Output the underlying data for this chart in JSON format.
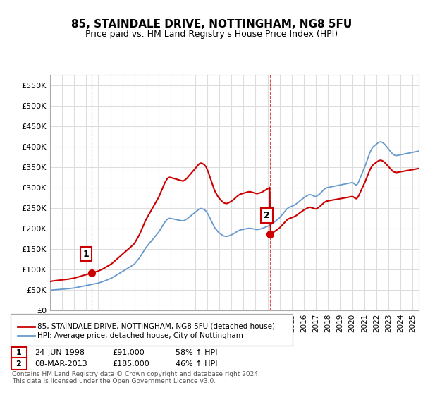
{
  "title": "85, STAINDALE DRIVE, NOTTINGHAM, NG8 5FU",
  "subtitle": "Price paid vs. HM Land Registry's House Price Index (HPI)",
  "ylim": [
    0,
    575000
  ],
  "yticks": [
    0,
    50000,
    100000,
    150000,
    200000,
    250000,
    300000,
    350000,
    400000,
    450000,
    500000,
    550000
  ],
  "ytick_labels": [
    "£0",
    "£50K",
    "£100K",
    "£150K",
    "£200K",
    "£250K",
    "£300K",
    "£350K",
    "£400K",
    "£450K",
    "£500K",
    "£550K"
  ],
  "xtick_years": [
    1995,
    1996,
    1997,
    1998,
    1999,
    2000,
    2001,
    2002,
    2003,
    2004,
    2005,
    2006,
    2007,
    2008,
    2009,
    2010,
    2011,
    2012,
    2013,
    2014,
    2015,
    2016,
    2017,
    2018,
    2019,
    2020,
    2021,
    2022,
    2023,
    2024,
    2025
  ],
  "sale1_x": 1998.48,
  "sale1_y": 91000,
  "sale2_x": 2013.18,
  "sale2_y": 185000,
  "line1_color": "#cc0000",
  "line2_color": "#6699cc",
  "marker_color": "#cc0000",
  "annotation1_label": "1",
  "annotation2_label": "2",
  "legend_line1": "85, STAINDALE DRIVE, NOTTINGHAM, NG8 5FU (detached house)",
  "legend_line2": "HPI: Average price, detached house, City of Nottingham",
  "table_row1_num": "1",
  "table_row1_date": "24-JUN-1998",
  "table_row1_price": "£91,000",
  "table_row1_hpi": "58% ↑ HPI",
  "table_row2_num": "2",
  "table_row2_date": "08-MAR-2013",
  "table_row2_price": "£185,000",
  "table_row2_hpi": "46% ↑ HPI",
  "footer": "Contains HM Land Registry data © Crown copyright and database right 2024.\nThis data is licensed under the Open Government Licence v3.0.",
  "background_color": "#ffffff",
  "grid_color": "#dddddd",
  "hpi_y": [
    48000,
    48500,
    49000,
    49200,
    49400,
    49600,
    49800,
    50000,
    50200,
    50400,
    50600,
    50800,
    51000,
    51200,
    51400,
    51600,
    51800,
    52000,
    52200,
    52500,
    52800,
    53100,
    53400,
    53700,
    54000,
    54500,
    55000,
    55500,
    56000,
    56500,
    57000,
    57500,
    58000,
    58500,
    59000,
    59500,
    60000,
    60500,
    61000,
    61500,
    62000,
    62500,
    63000,
    63500,
    64000,
    64500,
    65000,
    65500,
    66000,
    66800,
    67600,
    68400,
    69200,
    70000,
    71000,
    72000,
    73000,
    74000,
    75000,
    76000,
    77000,
    78000,
    79500,
    81000,
    82500,
    84000,
    85500,
    87000,
    88500,
    90000,
    91500,
    93000,
    94500,
    96000,
    97500,
    99000,
    100500,
    102000,
    103500,
    105000,
    106500,
    108000,
    109500,
    111000,
    113000,
    116000,
    119000,
    122000,
    125000,
    128000,
    132000,
    136000,
    140000,
    144000,
    148000,
    152000,
    155000,
    158000,
    161000,
    164000,
    167000,
    170000,
    173000,
    176000,
    179000,
    182000,
    185000,
    188000,
    191000,
    195000,
    199000,
    203000,
    207000,
    211000,
    215000,
    218000,
    221000,
    223000,
    224000,
    224500,
    224000,
    223500,
    223000,
    222500,
    222000,
    221500,
    221000,
    220500,
    220000,
    219500,
    219000,
    218500,
    218000,
    219000,
    220000,
    221500,
    223000,
    225000,
    227000,
    229000,
    231000,
    233000,
    235000,
    237000,
    239000,
    241000,
    243000,
    245000,
    247000,
    248000,
    248500,
    248000,
    247000,
    246000,
    244000,
    242000,
    238000,
    234000,
    229000,
    224000,
    219000,
    214000,
    209000,
    204000,
    200000,
    197000,
    194000,
    191000,
    189000,
    187000,
    185000,
    183500,
    182000,
    181000,
    180500,
    180000,
    180500,
    181000,
    182000,
    183000,
    184000,
    185000,
    186500,
    188000,
    189500,
    191000,
    192500,
    194000,
    195000,
    196000,
    196500,
    197000,
    197500,
    198000,
    198500,
    199000,
    199500,
    200000,
    200000,
    200000,
    199500,
    199000,
    198500,
    198000,
    197500,
    197000,
    197000,
    197500,
    198000,
    198500,
    199000,
    200000,
    201000,
    202000,
    203000,
    204000,
    205000,
    206000,
    207500,
    209000,
    210500,
    212000,
    214000,
    216000,
    218000,
    220000,
    222000,
    224000,
    226000,
    229000,
    232000,
    235000,
    238000,
    241000,
    244000,
    247000,
    249000,
    251000,
    252000,
    253000,
    254000,
    255000,
    256000,
    257500,
    259000,
    261000,
    263000,
    265000,
    267000,
    269000,
    271000,
    273000,
    275000,
    276500,
    278000,
    279500,
    281000,
    282000,
    282500,
    282000,
    281000,
    280000,
    279000,
    278000,
    278000,
    279000,
    281000,
    283000,
    285000,
    287500,
    290000,
    292500,
    295000,
    297000,
    298500,
    299500,
    300000,
    300500,
    301000,
    301500,
    302000,
    302500,
    303000,
    303500,
    304000,
    304500,
    305000,
    305500,
    306000,
    306500,
    307000,
    307500,
    308000,
    308500,
    309000,
    309500,
    310000,
    310500,
    311000,
    311500,
    312000,
    311000,
    309000,
    307000,
    306000,
    308000,
    312000,
    318000,
    324000,
    330000,
    336000,
    342000,
    348000,
    354000,
    361000,
    368000,
    375000,
    382000,
    388000,
    393000,
    397000,
    400000,
    402000,
    404000,
    406000,
    408000,
    410000,
    411000,
    411500,
    411000,
    410000,
    408000,
    406000,
    403000,
    400000,
    397000,
    394000,
    391000,
    388000,
    385000,
    382000,
    380000,
    379000,
    378500,
    378000,
    378500,
    379000,
    379500,
    380000,
    380500,
    381000,
    381500,
    382000,
    382500,
    383000,
    383500,
    384000,
    384500,
    385000,
    385500,
    386000,
    386500,
    387000,
    387500,
    388000,
    388500,
    389000
  ]
}
